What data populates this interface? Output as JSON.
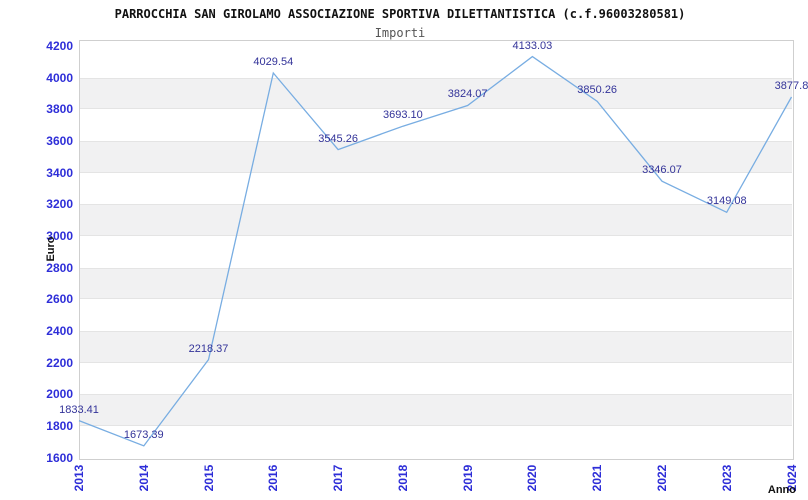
{
  "chart_data": {
    "type": "line",
    "title": "PARROCCHIA SAN GIROLAMO ASSOCIAZIONE SPORTIVA DILETTANTISTICA (c.f.96003280581)",
    "subtitle": "Importi",
    "xlabel": "Anno",
    "ylabel": "Euro",
    "categories": [
      "2013",
      "2014",
      "2015",
      "2016",
      "2017",
      "2018",
      "2019",
      "2020",
      "2021",
      "2022",
      "2023",
      "2024"
    ],
    "values": [
      1833.41,
      1673.39,
      2218.37,
      4029.54,
      3545.26,
      3693.1,
      3824.07,
      4133.03,
      3850.26,
      3346.07,
      3149.08,
      3877.8
    ],
    "point_labels": [
      "1833.41",
      "1673.39",
      "2218.37",
      "4029.54",
      "3545.26",
      "3693.10",
      "3824.07",
      "4133.03",
      "3850.26",
      "3346.07",
      "3149.08",
      "3877.8"
    ],
    "ylim": [
      1600,
      4200
    ],
    "ytick_step": 200,
    "ytick_labels": [
      "4200",
      "4000",
      "3800",
      "3600",
      "3400",
      "3200",
      "3000",
      "2800",
      "2600",
      "2400",
      "2200",
      "2000",
      "1800",
      "1600"
    ],
    "legend": "none",
    "grid": "alternating horizontal bands every 200 units",
    "colors": {
      "line": "#78ade2",
      "tick_label": "#2e2ed8",
      "data_label": "#333399",
      "band": "#f1f1f2",
      "band_edge": "#e4e4e4",
      "plot_border": "#cfcfcf",
      "title": "#111111",
      "subtitle": "#555555"
    }
  }
}
